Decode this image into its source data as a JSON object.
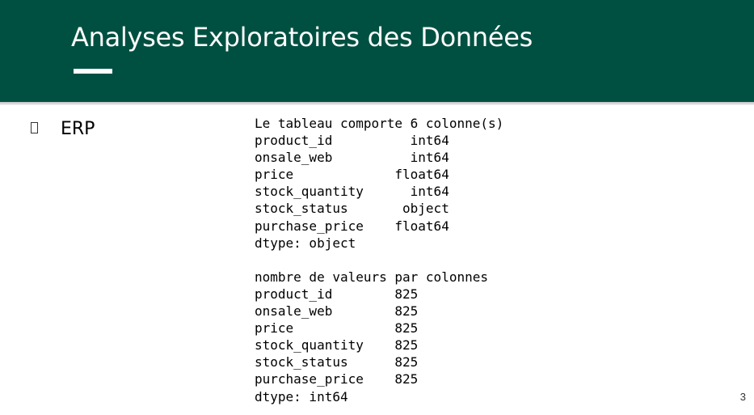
{
  "slide": {
    "title": "Analyses Exploratoires des Données",
    "bullet_label": "ERP",
    "page_number": "3",
    "colors": {
      "header_bg": "#005041",
      "title": "#ffffff",
      "text": "#000000"
    }
  },
  "output_lines": [
    "Le tableau comporte 6 colonne(s)",
    "product_id          int64",
    "onsale_web          int64",
    "price             float64",
    "stock_quantity      int64",
    "stock_status       object",
    "purchase_price    float64",
    "dtype: object",
    "",
    "nombre de valeurs par colonnes",
    "product_id        825",
    "onsale_web        825",
    "price             825",
    "stock_quantity    825",
    "stock_status      825",
    "purchase_price    825",
    "dtype: int64"
  ]
}
